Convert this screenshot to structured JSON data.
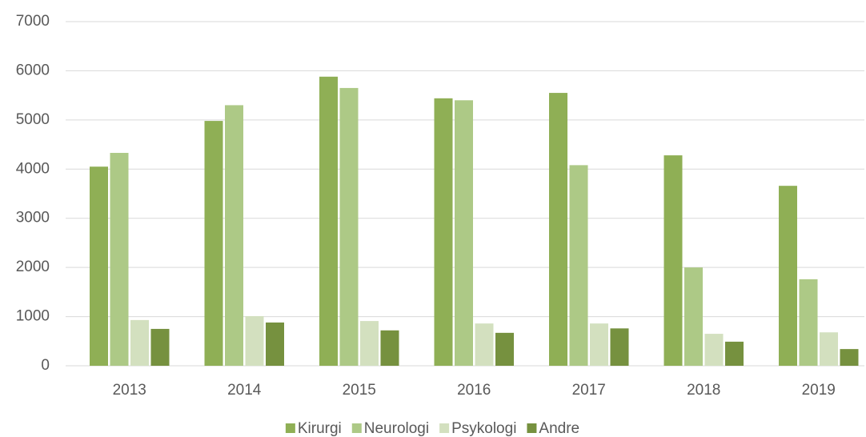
{
  "chart_data": {
    "type": "bar",
    "categories": [
      "2013",
      "2014",
      "2015",
      "2016",
      "2017",
      "2018",
      "2019"
    ],
    "series": [
      {
        "name": "Kirurgi",
        "color": "#8faf55",
        "values": [
          4050,
          4980,
          5880,
          5440,
          5550,
          4280,
          3660
        ]
      },
      {
        "name": "Neurologi",
        "color": "#adc986",
        "values": [
          4330,
          5300,
          5650,
          5400,
          4080,
          2000,
          1760
        ]
      },
      {
        "name": "Psykologi",
        "color": "#d3e0bf",
        "values": [
          930,
          1010,
          910,
          860,
          860,
          650,
          680
        ]
      },
      {
        "name": "Andre",
        "color": "#76913f",
        "values": [
          750,
          880,
          720,
          670,
          760,
          490,
          340
        ]
      }
    ],
    "ylim": [
      0,
      7000
    ],
    "yticks": [
      0,
      1000,
      2000,
      3000,
      4000,
      5000,
      6000,
      7000
    ],
    "grid": true,
    "legend": "bottom"
  }
}
